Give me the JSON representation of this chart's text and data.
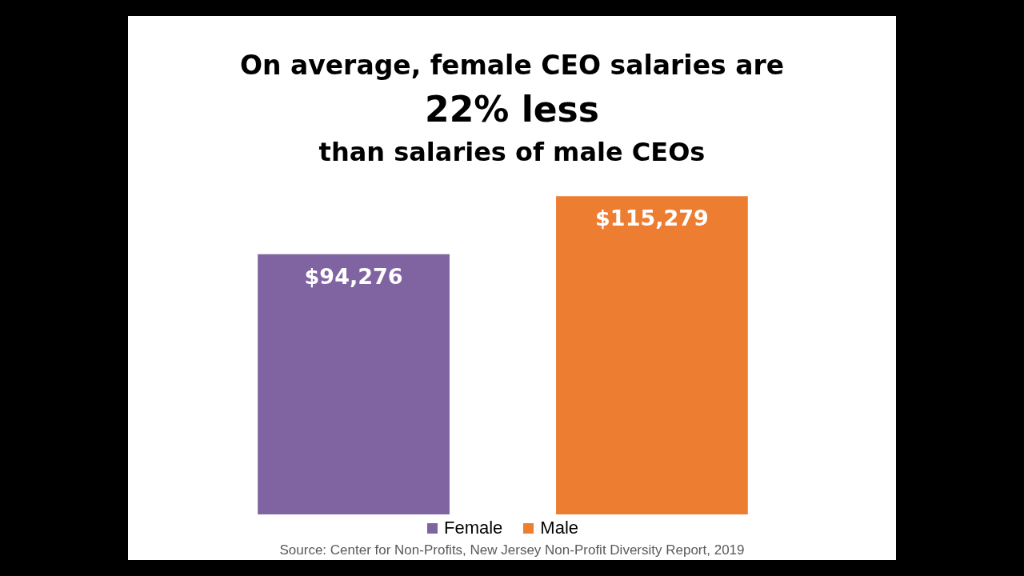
{
  "chart_data": {
    "type": "bar",
    "title": "On average, female CEO salaries are",
    "subtitle": "22% less",
    "categories": [
      null
    ],
    "series": [
      {
        "name": "Female",
        "color": "#8064a2",
        "values": [
          94276
        ],
        "value_labels": [
          "$94,276"
        ]
      },
      {
        "name": "Male",
        "color": "#ed7d31",
        "values": [
          115279
        ],
        "value_labels": [
          "$115,279"
        ]
      }
    ],
    "annotations": [
      "than salaries of male CEOs",
      "Source: Center for Non-Profits, New Jersey Non-Profit Diversity Report, 2019"
    ],
    "legend": "bottom",
    "tick_labels": false
  }
}
